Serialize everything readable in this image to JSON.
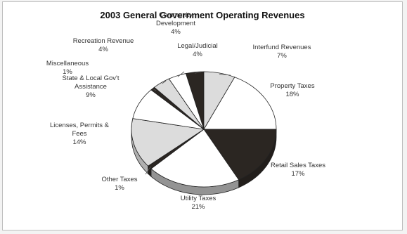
{
  "chart_data": {
    "type": "pie",
    "title": "2003 General Government Operating Revenues",
    "slices": [
      {
        "label": [
          "Legal/Judicial"
        ],
        "value": 4,
        "value_label": "4%",
        "color": "#2b2622"
      },
      {
        "label": [
          "Interfund Revenues"
        ],
        "value": 7,
        "value_label": "7%",
        "color": "#dcdcdc"
      },
      {
        "label": [
          "Property Taxes"
        ],
        "value": 18,
        "value_label": "18%",
        "color": "#ffffff"
      },
      {
        "label": [
          "Retail Sales Taxes"
        ],
        "value": 17,
        "value_label": "17%",
        "color": "#2b2622"
      },
      {
        "label": [
          "Utility Taxes"
        ],
        "value": 21,
        "value_label": "21%",
        "color": "#ffffff"
      },
      {
        "label": [
          "Other Taxes"
        ],
        "value": 1,
        "value_label": "1%",
        "color": "#2b2622"
      },
      {
        "label": [
          "Licenses, Permits &",
          "Fees"
        ],
        "value": 14,
        "value_label": "14%",
        "color": "#dcdcdc"
      },
      {
        "label": [
          "State & Local Gov't",
          "Assistance"
        ],
        "value": 9,
        "value_label": "9%",
        "color": "#ffffff"
      },
      {
        "label": [
          "Miscellaneous"
        ],
        "value": 1,
        "value_label": "1%",
        "color": "#2b2622"
      },
      {
        "label": [
          "Recreation Revenue"
        ],
        "value": 4,
        "value_label": "4%",
        "color": "#dcdcdc"
      },
      {
        "label": [
          "Community",
          "Development"
        ],
        "value": 4,
        "value_label": "4%",
        "color": "#ffffff"
      }
    ],
    "legend": false
  }
}
